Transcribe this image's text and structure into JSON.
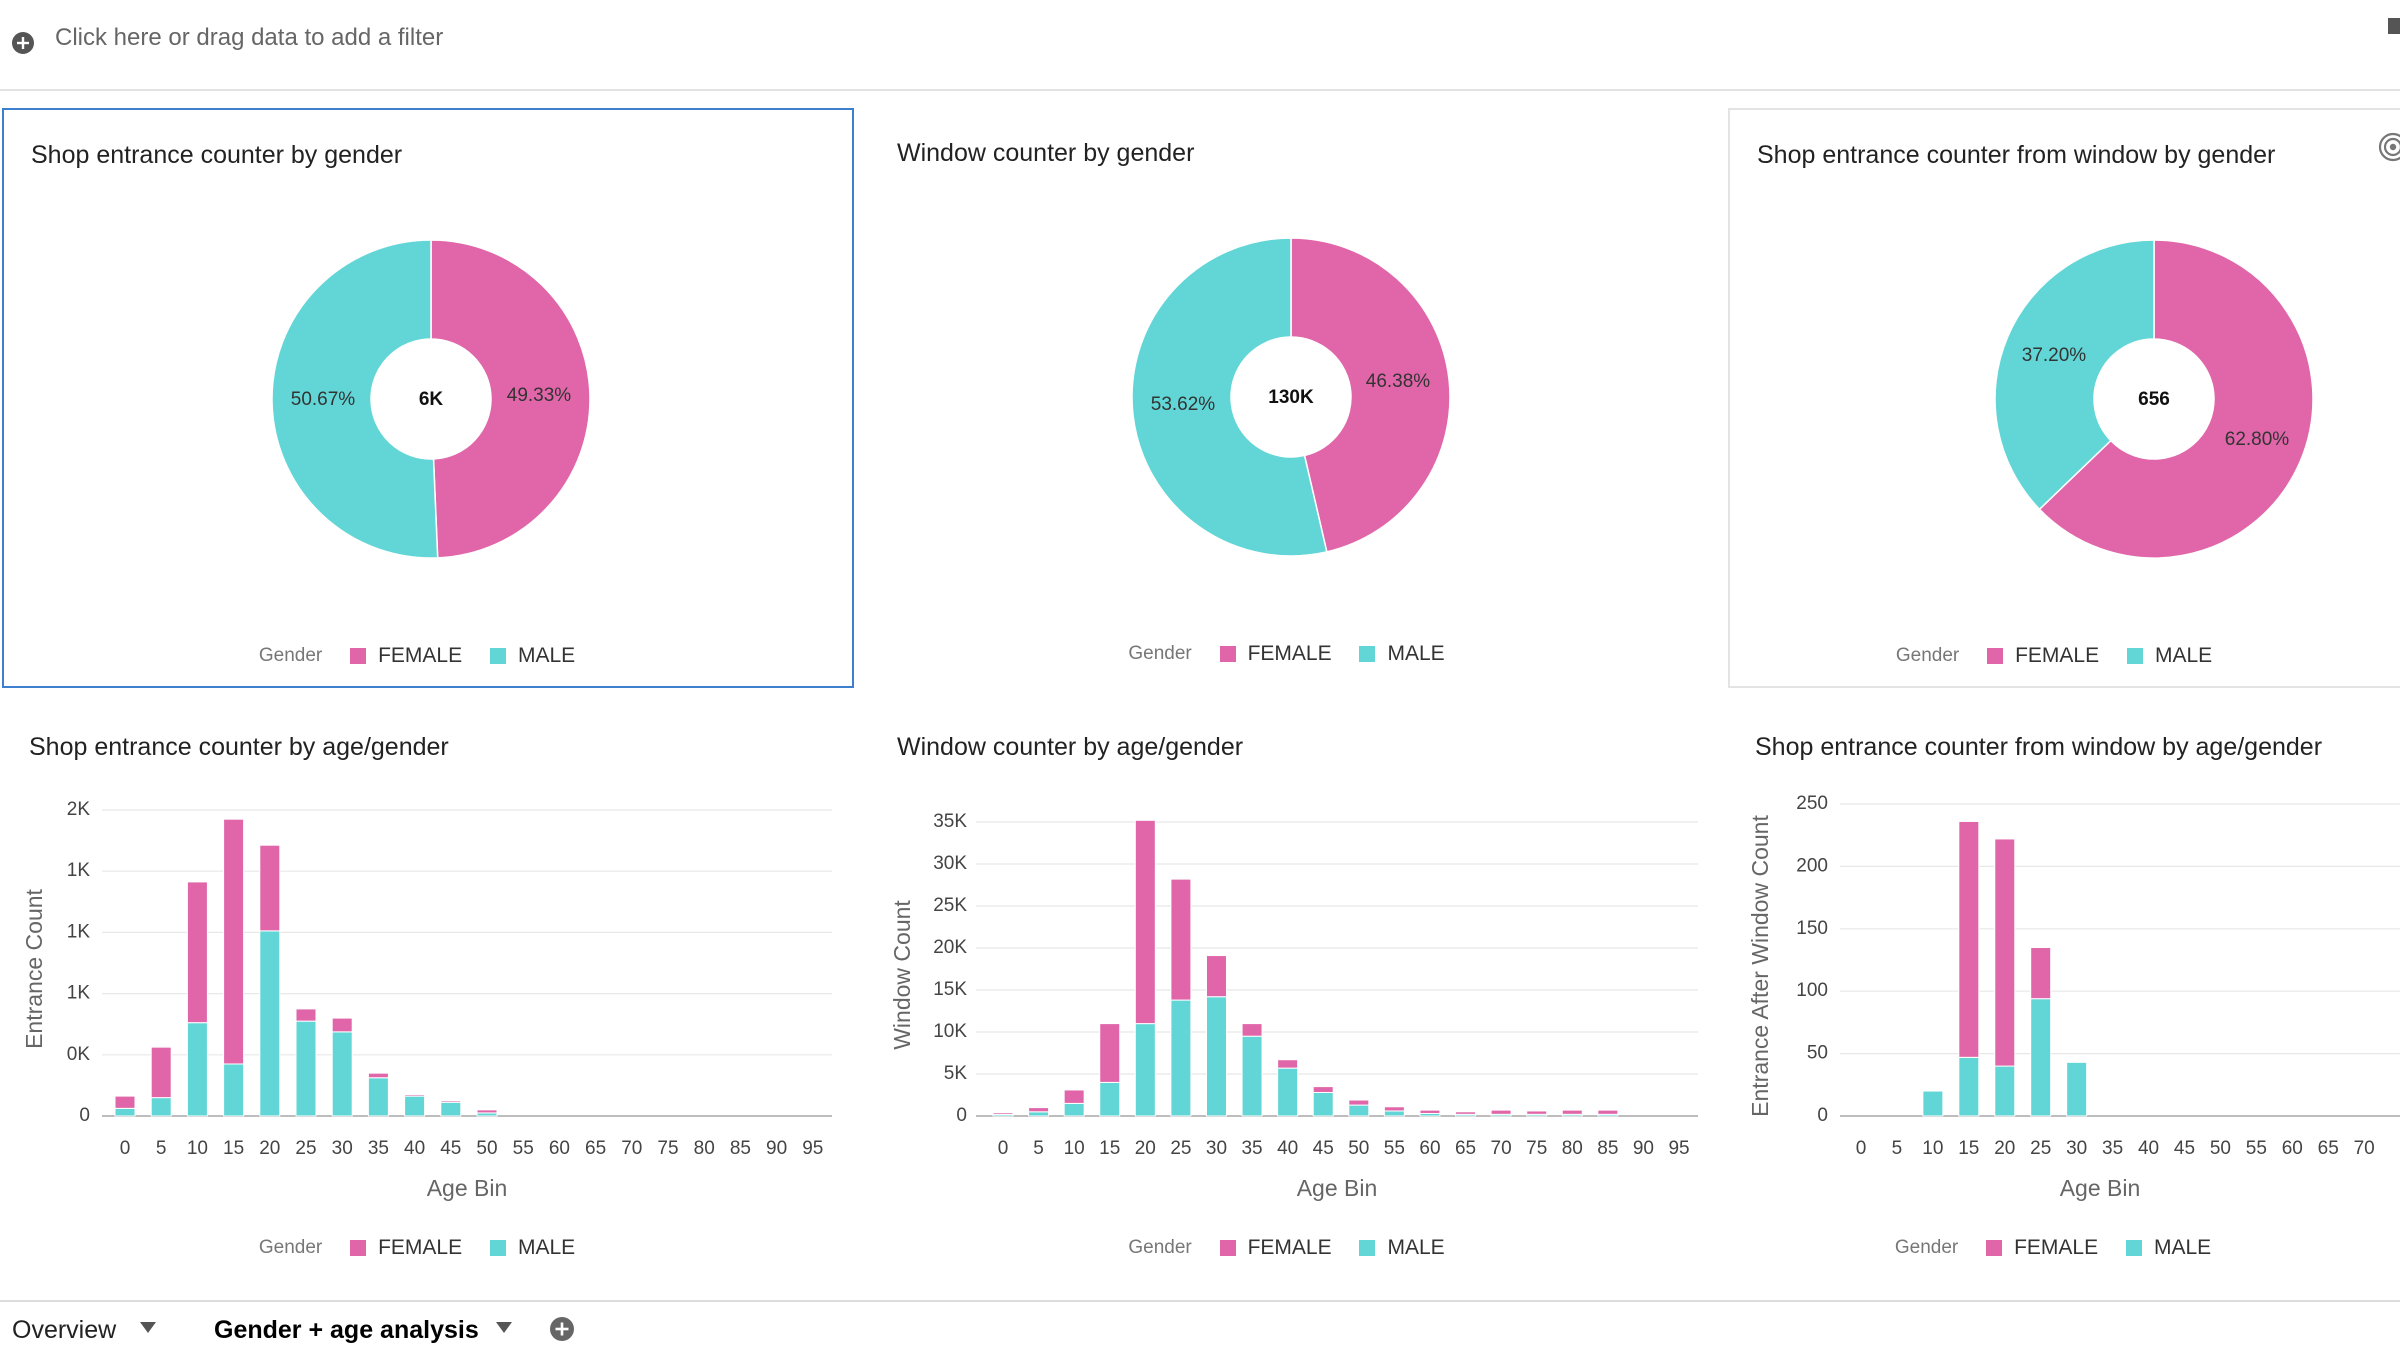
{
  "filter_bar": {
    "text": "Click here or drag data to add a filter",
    "add_icon": "plus-circle-icon"
  },
  "colors": {
    "female": "#e066a9",
    "male": "#62d6d6"
  },
  "legend": {
    "title": "Gender",
    "female": "FEMALE",
    "male": "MALE"
  },
  "panels": {
    "p1": {
      "title": "Shop entrance counter by gender"
    },
    "p2": {
      "title": "Window counter by gender"
    },
    "p3": {
      "title": "Shop entrance counter from window by gender",
      "options_icon": "target-icon"
    },
    "p4": {
      "title": "Shop entrance counter by age/gender"
    },
    "p5": {
      "title": "Window counter by age/gender"
    },
    "p6": {
      "title": "Shop entrance counter from window by age/gender"
    }
  },
  "chart_data": [
    {
      "type": "pie",
      "id": "p1",
      "center_label": "6K",
      "slices": [
        {
          "name": "FEMALE",
          "value": 49.33,
          "label": "49.33%"
        },
        {
          "name": "MALE",
          "value": 50.67,
          "label": "50.67%"
        }
      ]
    },
    {
      "type": "pie",
      "id": "p2",
      "center_label": "130K",
      "slices": [
        {
          "name": "FEMALE",
          "value": 46.38,
          "label": "46.38%"
        },
        {
          "name": "MALE",
          "value": 53.62,
          "label": "53.62%"
        }
      ]
    },
    {
      "type": "pie",
      "id": "p3",
      "center_label": "656",
      "slices": [
        {
          "name": "FEMALE",
          "value": 62.8,
          "label": "62.80%"
        },
        {
          "name": "MALE",
          "value": 37.2,
          "label": "37.20%"
        }
      ]
    },
    {
      "type": "bar",
      "stacked": true,
      "id": "p4",
      "xlabel": "Age Bin",
      "ylabel": "Entrance Count",
      "categories": [
        "0",
        "5",
        "10",
        "15",
        "20",
        "25",
        "30",
        "35",
        "40",
        "45",
        "50",
        "55",
        "60",
        "65",
        "70",
        "75",
        "80",
        "85",
        "90",
        "95"
      ],
      "y_ticks": [
        {
          "v": 0,
          "l": "0"
        },
        {
          "v": 400,
          "l": "0K"
        },
        {
          "v": 800,
          "l": "1K"
        },
        {
          "v": 1200,
          "l": "1K"
        },
        {
          "v": 1600,
          "l": "1K"
        },
        {
          "v": 2000,
          "l": "2K"
        }
      ],
      "ylim": [
        0,
        2000
      ],
      "series": [
        {
          "name": "MALE",
          "values": [
            50,
            120,
            610,
            340,
            1210,
            620,
            550,
            250,
            130,
            90,
            20,
            0,
            0,
            0,
            0,
            0,
            0,
            0,
            0,
            0
          ]
        },
        {
          "name": "FEMALE",
          "values": [
            80,
            330,
            920,
            1600,
            560,
            80,
            90,
            30,
            10,
            10,
            20,
            0,
            0,
            0,
            0,
            0,
            0,
            0,
            0,
            0
          ]
        }
      ]
    },
    {
      "type": "bar",
      "stacked": true,
      "id": "p5",
      "xlabel": "Age Bin",
      "ylabel": "Window Count",
      "categories": [
        "0",
        "5",
        "10",
        "15",
        "20",
        "25",
        "30",
        "35",
        "40",
        "45",
        "50",
        "55",
        "60",
        "65",
        "70",
        "75",
        "80",
        "85",
        "90",
        "95"
      ],
      "y_ticks": [
        {
          "v": 0,
          "l": "0"
        },
        {
          "v": 5000,
          "l": "5K"
        },
        {
          "v": 10000,
          "l": "10K"
        },
        {
          "v": 15000,
          "l": "15K"
        },
        {
          "v": 20000,
          "l": "20K"
        },
        {
          "v": 25000,
          "l": "25K"
        },
        {
          "v": 30000,
          "l": "30K"
        },
        {
          "v": 35000,
          "l": "35K"
        }
      ],
      "ylim": [
        0,
        35000
      ],
      "series": [
        {
          "name": "MALE",
          "values": [
            200,
            500,
            1500,
            4000,
            11000,
            13800,
            14200,
            9500,
            5700,
            2800,
            1300,
            600,
            300,
            200,
            200,
            200,
            200,
            200,
            0,
            0
          ]
        },
        {
          "name": "FEMALE",
          "values": [
            200,
            500,
            1600,
            7000,
            24200,
            14400,
            4900,
            1500,
            1000,
            700,
            600,
            500,
            400,
            300,
            500,
            400,
            500,
            500,
            0,
            0
          ]
        }
      ]
    },
    {
      "type": "bar",
      "stacked": true,
      "id": "p6",
      "xlabel": "Age Bin",
      "ylabel": "Entrance After Window Count",
      "categories": [
        "0",
        "5",
        "10",
        "15",
        "20",
        "25",
        "30",
        "35",
        "40",
        "45",
        "50",
        "55",
        "60",
        "65",
        "70"
      ],
      "y_ticks": [
        {
          "v": 0,
          "l": "0"
        },
        {
          "v": 50,
          "l": "50"
        },
        {
          "v": 100,
          "l": "100"
        },
        {
          "v": 150,
          "l": "150"
        },
        {
          "v": 200,
          "l": "200"
        },
        {
          "v": 250,
          "l": "250"
        }
      ],
      "ylim": [
        0,
        250
      ],
      "series": [
        {
          "name": "MALE",
          "values": [
            0,
            0,
            20,
            47,
            40,
            94,
            43,
            0,
            0,
            0,
            0,
            0,
            0,
            0,
            0
          ]
        },
        {
          "name": "FEMALE",
          "values": [
            0,
            0,
            0,
            189,
            182,
            41,
            0,
            0,
            0,
            0,
            0,
            0,
            0,
            0,
            0
          ]
        }
      ]
    }
  ],
  "tabs": [
    {
      "label": "Overview",
      "active": false
    },
    {
      "label": "Gender + age analysis",
      "active": true
    }
  ],
  "tab_add_icon": "plus-circle-icon"
}
